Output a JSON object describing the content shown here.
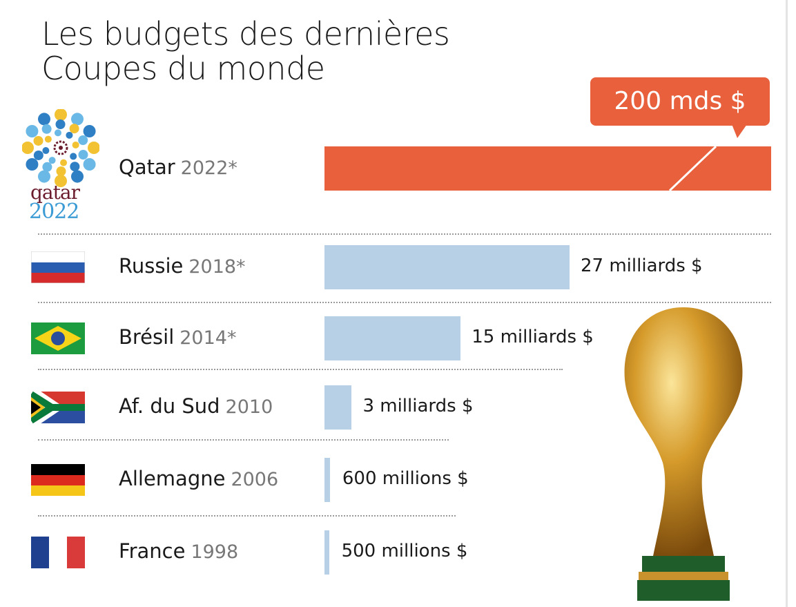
{
  "title_line1": "Les budgets des dernières",
  "title_line2": "Coupes du monde",
  "colors": {
    "highlight": "#e8603c",
    "bar": "#b8d0e6"
  },
  "chart_data": {
    "type": "bar",
    "orientation": "horizontal",
    "title": "Les budgets des dernières Coupes du monde",
    "unit": "milliards $",
    "categories": [
      "Qatar 2022*",
      "Russie 2018*",
      "Brésil 2014*",
      "Af. du Sud 2010",
      "Allemagne 2006",
      "France 1998"
    ],
    "values": [
      200,
      27,
      15,
      3,
      0.6,
      0.5
    ],
    "axis_break": "Qatar bar truncated",
    "rows": [
      {
        "country": "Qatar",
        "year": "2022*",
        "value": 200,
        "label": "200 mds $",
        "flag": "qatar-2022-logo"
      },
      {
        "country": "Russie",
        "year": "2018*",
        "value": 27,
        "label": "27 milliards $",
        "flag": "russia-flag"
      },
      {
        "country": "Brésil",
        "year": "2014*",
        "value": 15,
        "label": "15 milliards $",
        "flag": "brazil-flag"
      },
      {
        "country": "Af. du Sud",
        "year": "2010",
        "value": 3,
        "label": "3 milliards $",
        "flag": "south-africa-flag"
      },
      {
        "country": "Allemagne",
        "year": "2006",
        "value": 0.6,
        "label": "600 millions $",
        "flag": "germany-flag"
      },
      {
        "country": "France",
        "year": "1998",
        "value": 0.5,
        "label": "500 millions $",
        "flag": "france-flag"
      }
    ]
  },
  "logo_text": {
    "line1": "qatar",
    "line2": "2022"
  }
}
